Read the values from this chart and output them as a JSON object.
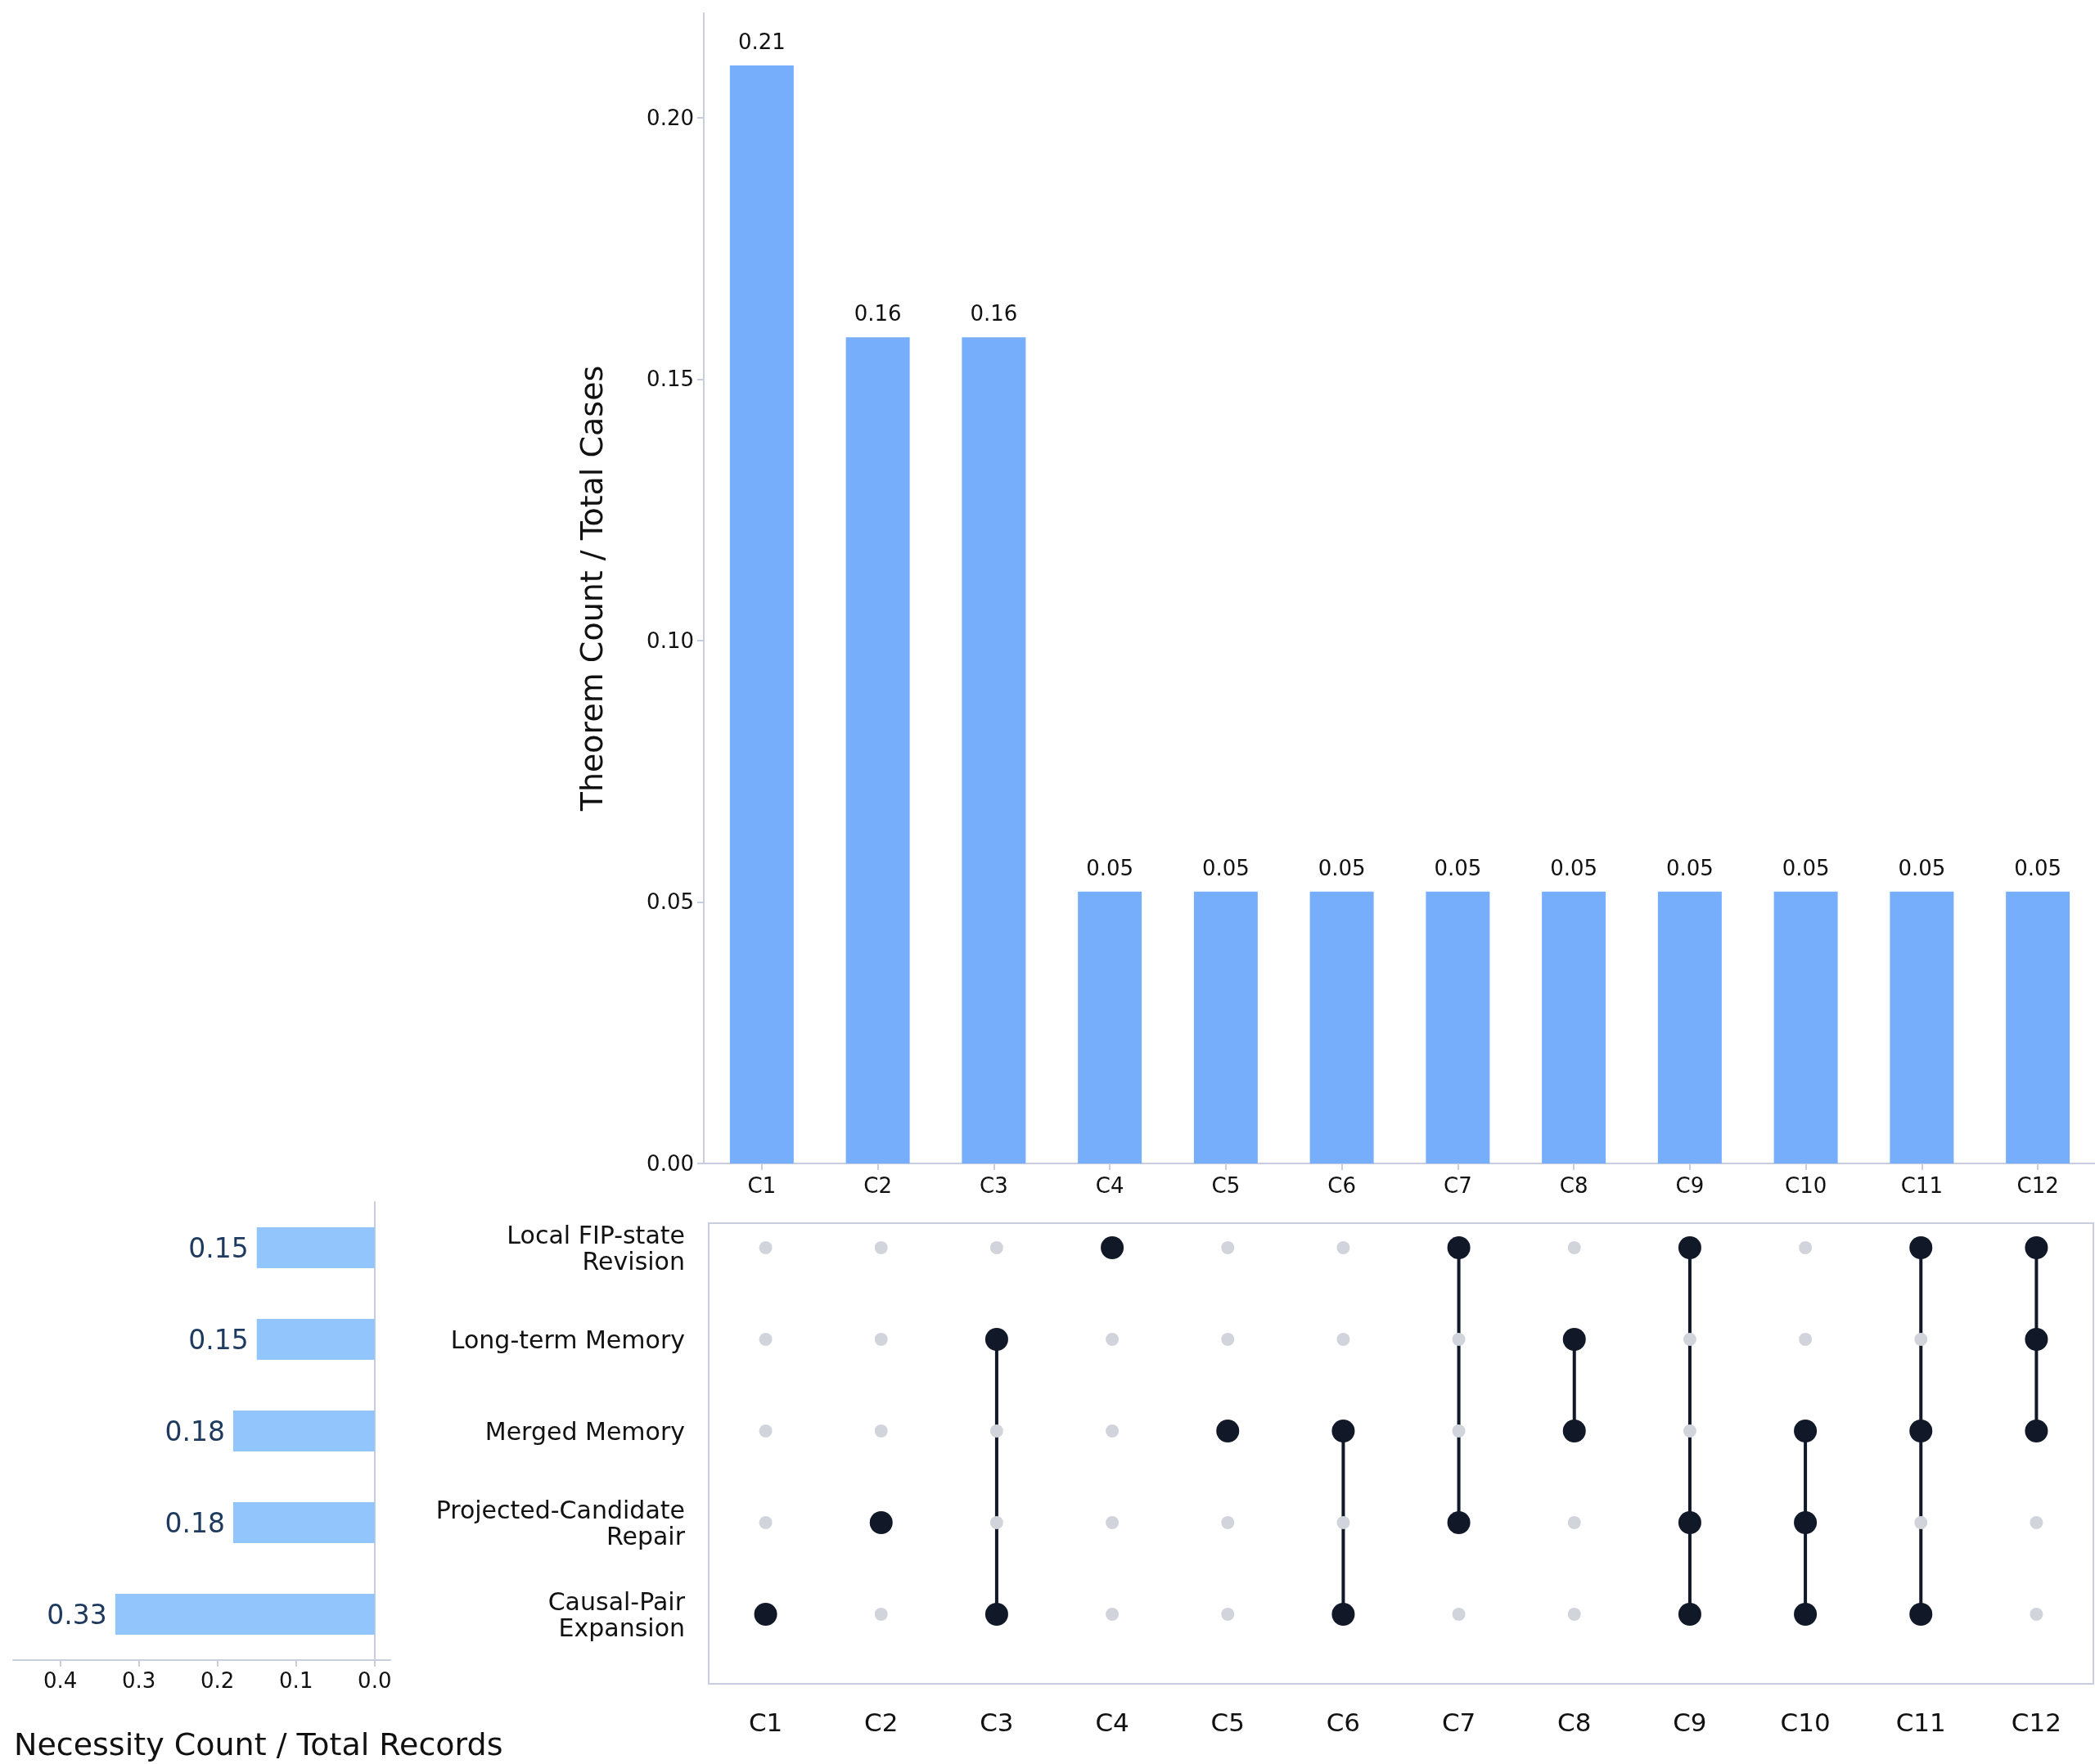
{
  "chart_data": [
    {
      "type": "bar",
      "ylabel": "Theorem Count / Total Cases",
      "categories": [
        "C1",
        "C2",
        "C3",
        "C4",
        "C5",
        "C6",
        "C7",
        "C8",
        "C9",
        "C10",
        "C11",
        "C12"
      ],
      "values": [
        0.21,
        0.158,
        0.158,
        0.052,
        0.052,
        0.052,
        0.052,
        0.052,
        0.052,
        0.052,
        0.052,
        0.052
      ],
      "value_labels": [
        "0.21",
        "0.16",
        "0.16",
        "0.05",
        "0.05",
        "0.05",
        "0.05",
        "0.05",
        "0.05",
        "0.05",
        "0.05",
        "0.05"
      ],
      "color": "#76aefc",
      "ylim": [
        0,
        0.22
      ],
      "yticks": [
        {
          "value": 0,
          "label": "0.00"
        },
        {
          "value": 0.05,
          "label": "0.05"
        },
        {
          "value": 0.1,
          "label": "0.10"
        },
        {
          "value": 0.15,
          "label": "0.15"
        },
        {
          "value": 0.2,
          "label": "0.20"
        }
      ]
    },
    {
      "type": "bar",
      "orientation": "horizontal",
      "xlabel": "Necessity Count / Total Records",
      "values": [
        0.15,
        0.15,
        0.18,
        0.18,
        0.33
      ],
      "data_labels": true,
      "color": "#93c5fd",
      "xlim": [
        0.46,
        -0.02
      ],
      "xticks": [
        0.4,
        0.3,
        0.2,
        0.1,
        {
          "value": 0,
          "label": "0.0"
        }
      ],
      "tick_labels": "x"
    },
    {
      "type": "other",
      "categories": [
        "C1",
        "C2",
        "C3",
        "C4",
        "C5",
        "C6",
        "C7",
        "C8",
        "C9",
        "C10",
        "C11",
        "C12"
      ],
      "y_categories": [
        "Local FIP-state\nRevision",
        "Long-term Memory",
        "Merged Memory",
        "Projected-Candidate\nRepair",
        "Causal-Pair\nExpansion"
      ],
      "color": "#111827",
      "cells": [
        [
          false,
          false,
          false,
          true,
          false,
          false,
          true,
          false,
          true,
          false,
          true,
          true
        ],
        [
          false,
          false,
          true,
          false,
          false,
          false,
          false,
          true,
          false,
          false,
          false,
          true
        ],
        [
          false,
          false,
          false,
          false,
          true,
          true,
          false,
          true,
          false,
          true,
          true,
          true
        ],
        [
          false,
          true,
          false,
          false,
          false,
          false,
          true,
          false,
          true,
          true,
          false,
          false
        ],
        [
          true,
          false,
          true,
          false,
          false,
          true,
          false,
          false,
          true,
          true,
          true,
          false
        ]
      ]
    }
  ]
}
